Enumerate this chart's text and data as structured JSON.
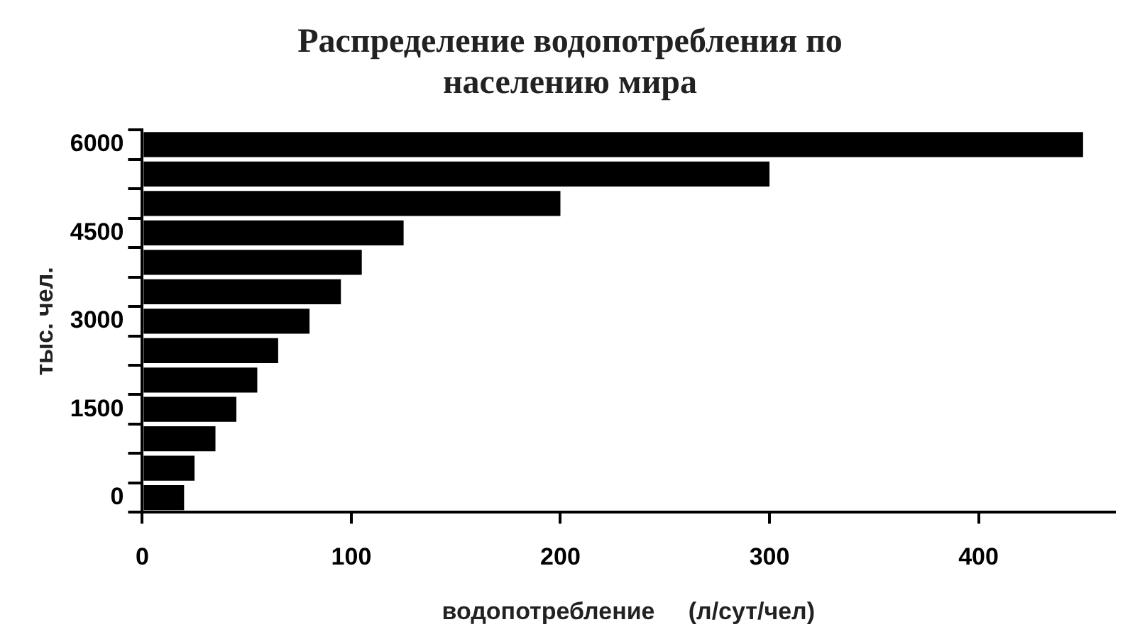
{
  "chart_data": {
    "type": "bar",
    "orientation": "horizontal",
    "title": "Распределение водопотребления по населению мира",
    "xlabel": "водопотребление     (л/сут/чел)",
    "ylabel": "тыс. чел.",
    "categories": [
      "6000",
      null,
      null,
      "4500",
      null,
      null,
      "3000",
      null,
      null,
      "1500",
      null,
      null,
      "0"
    ],
    "values": [
      450,
      300,
      200,
      125,
      105,
      95,
      80,
      65,
      55,
      45,
      35,
      25,
      20
    ],
    "color": "#000000",
    "xlim": [
      0,
      465
    ],
    "xticks": [
      0,
      100,
      200,
      300,
      400
    ],
    "grid": false,
    "legend": false
  }
}
